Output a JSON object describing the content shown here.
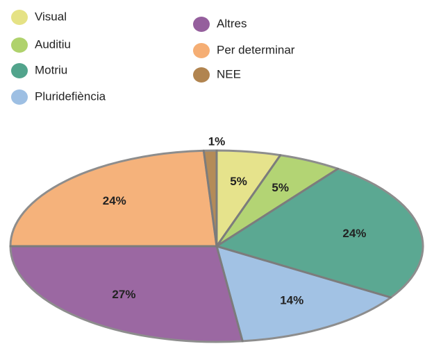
{
  "chart_data": {
    "type": "pie",
    "categories": [
      "Visual",
      "Auditiu",
      "Motriu",
      "Pluridefiència",
      "Altres",
      "Per determinar",
      "NEE"
    ],
    "values": [
      5,
      5,
      24,
      14,
      27,
      24,
      1
    ],
    "value_labels": [
      "5%",
      "5%",
      "24%",
      "14%",
      "27%",
      "24%",
      "1%"
    ],
    "colors": [
      "#e2df78",
      "#a6cd5c",
      "#3f9a80",
      "#92b8e0",
      "#8a4e92",
      "#f4a565",
      "#a8773c"
    ]
  }
}
